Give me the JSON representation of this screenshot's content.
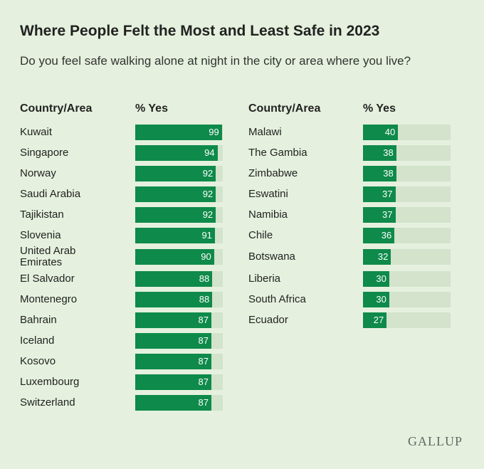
{
  "title": "Where People Felt the Most and Least Safe in 2023",
  "subtitle": "Do you feel safe walking alone at night in the city or area where you live?",
  "source": "GALLUP",
  "chart_data": [
    {
      "type": "bar",
      "category_header": "Country/Area",
      "value_header": "% Yes",
      "categories": [
        "Kuwait",
        "Singapore",
        "Norway",
        "Saudi Arabia",
        "Tajikistan",
        "Slovenia",
        "United Arab Emirates",
        "El Salvador",
        "Montenegro",
        "Bahrain",
        "Iceland",
        "Kosovo",
        "Luxembourg",
        "Switzerland"
      ],
      "values": [
        99,
        94,
        92,
        92,
        92,
        91,
        90,
        88,
        88,
        87,
        87,
        87,
        87,
        87
      ],
      "xlim": [
        0,
        100
      ],
      "color": "#0e8a4a",
      "track_color": "#d3e3cc"
    },
    {
      "type": "bar",
      "category_header": "Country/Area",
      "value_header": "% Yes",
      "categories": [
        "Malawi",
        "The Gambia",
        "Zimbabwe",
        "Eswatini",
        "Namibia",
        "Chile",
        "Botswana",
        "Liberia",
        "South Africa",
        "Ecuador"
      ],
      "values": [
        40,
        38,
        38,
        37,
        37,
        36,
        32,
        30,
        30,
        27
      ],
      "xlim": [
        0,
        100
      ],
      "color": "#0e8a4a",
      "track_color": "#d3e3cc"
    }
  ]
}
